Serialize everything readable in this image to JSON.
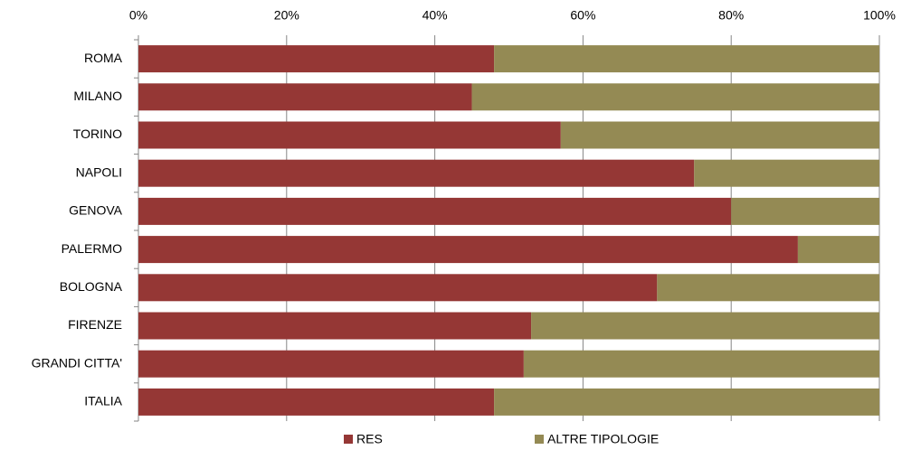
{
  "chart_data": {
    "type": "stacked_bar_horizontal",
    "categories": [
      "ROMA",
      "MILANO",
      "TORINO",
      "NAPOLI",
      "GENOVA",
      "PALERMO",
      "BOLOGNA",
      "FIRENZE",
      "GRANDI CITTA'",
      "ITALIA"
    ],
    "series": [
      {
        "name": "RES",
        "color": "#953735",
        "values": [
          48,
          45,
          57,
          75,
          80,
          89,
          70,
          53,
          52,
          48
        ]
      },
      {
        "name": "ALTRE TIPOLOGIE",
        "color": "#948a54",
        "values": [
          52,
          55,
          43,
          25,
          20,
          11,
          30,
          47,
          48,
          52
        ]
      }
    ],
    "xlim": [
      0,
      100
    ],
    "xticks": [
      {
        "value": 0,
        "label": "0%"
      },
      {
        "value": 20,
        "label": "20%"
      },
      {
        "value": 40,
        "label": "40%"
      },
      {
        "value": 60,
        "label": "60%"
      },
      {
        "value": 80,
        "label": "80%"
      },
      {
        "value": 100,
        "label": "100%"
      }
    ],
    "grid": true,
    "legend": "bottom"
  }
}
